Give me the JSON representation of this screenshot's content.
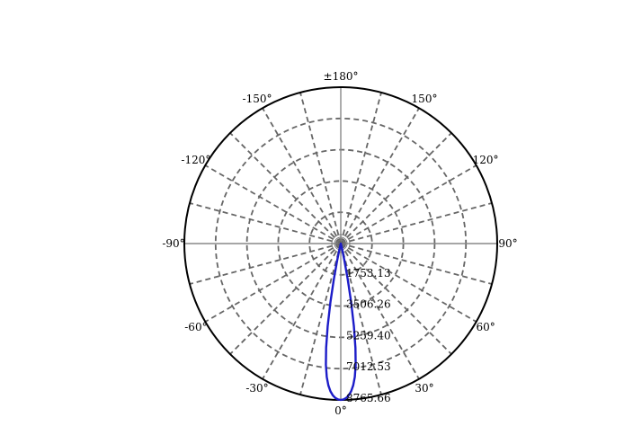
{
  "chart_data": {
    "type": "polar",
    "angle_labels": [
      {
        "angle": 180,
        "text": "±180°"
      },
      {
        "angle": 150,
        "text": "150°"
      },
      {
        "angle": 120,
        "text": "120°"
      },
      {
        "angle": 90,
        "text": "90°"
      },
      {
        "angle": 60,
        "text": "60°"
      },
      {
        "angle": 30,
        "text": "30°"
      },
      {
        "angle": 0,
        "text": "0°"
      },
      {
        "angle": -30,
        "text": "-30°"
      },
      {
        "angle": -60,
        "text": "-60°"
      },
      {
        "angle": -90,
        "text": "-90°"
      },
      {
        "angle": -120,
        "text": "-120°"
      },
      {
        "angle": -150,
        "text": "-150°"
      }
    ],
    "radial_max": 8765.66,
    "ring_values": [
      1753.13,
      3506.26,
      5259.4,
      7012.53,
      8765.66
    ],
    "ring_labels": [
      "1753.13",
      "3506.26",
      "5259.40",
      "7012.53",
      "8765.66"
    ],
    "grid": true,
    "series": [
      {
        "color": "#1c1cc8",
        "points": [
          [
            0,
            8765.66
          ],
          [
            1,
            8740
          ],
          [
            2,
            8660
          ],
          [
            3,
            8520
          ],
          [
            4,
            8300
          ],
          [
            5,
            7980
          ],
          [
            6,
            7520
          ],
          [
            7,
            6850
          ],
          [
            8,
            5900
          ],
          [
            9,
            4700
          ],
          [
            10,
            3350
          ],
          [
            11,
            2050
          ],
          [
            12,
            1000
          ],
          [
            13,
            380
          ],
          [
            14,
            120
          ],
          [
            15,
            20
          ],
          [
            16,
            0
          ]
        ]
      }
    ]
  }
}
